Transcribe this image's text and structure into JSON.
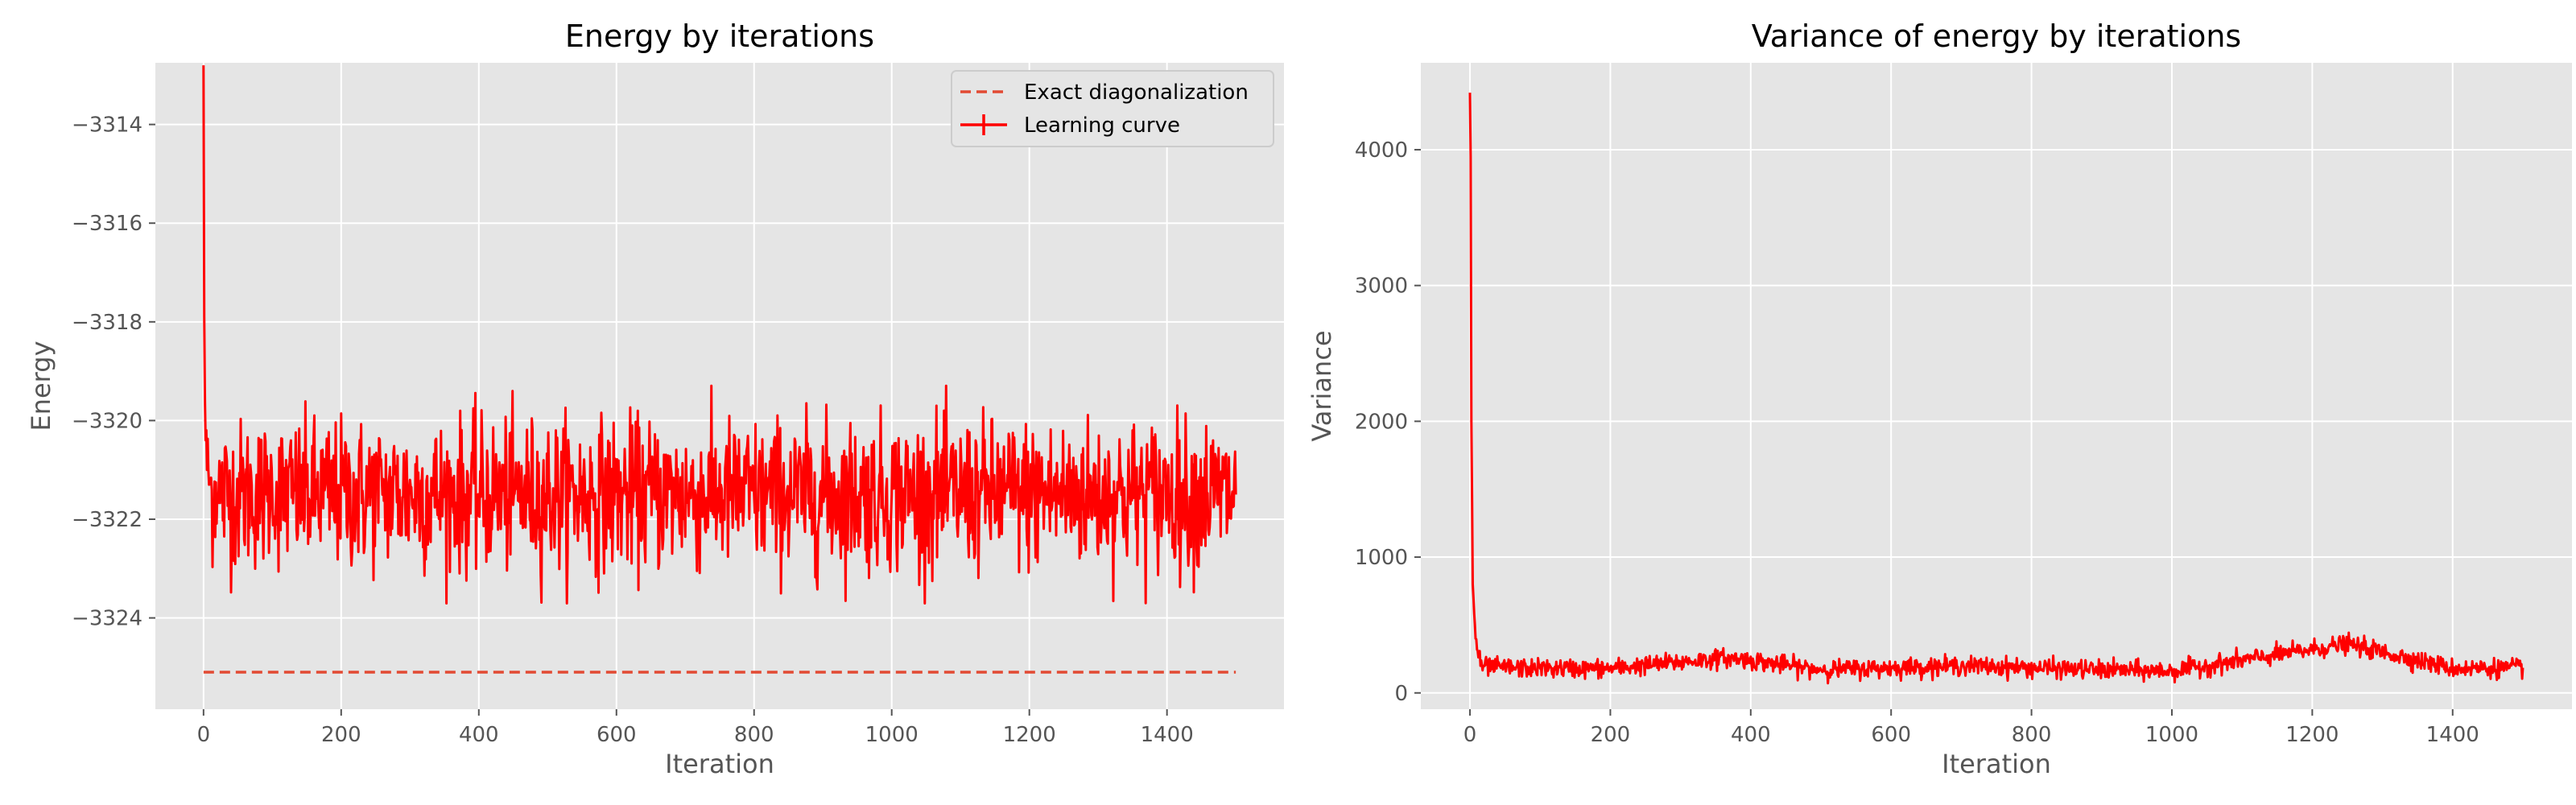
{
  "chart_data": [
    {
      "type": "line",
      "title": "Energy by iterations",
      "xlabel": "Iteration",
      "ylabel": "Energy",
      "xlim": [
        -70,
        1570
      ],
      "ylim": [
        -3325.85,
        -3312.75
      ],
      "xticks": [
        0,
        200,
        400,
        600,
        800,
        1000,
        1200,
        1400
      ],
      "xtick_labels": [
        "0",
        "200",
        "400",
        "600",
        "800",
        "1000",
        "1200",
        "1400"
      ],
      "yticks": [
        -3324,
        -3322,
        -3320,
        -3318,
        -3316,
        -3314
      ],
      "ytick_labels": [
        "−3324",
        "−3322",
        "−3320",
        "−3318",
        "−3316",
        "−3314"
      ],
      "grid": true,
      "legend": "top-right",
      "series": [
        {
          "name": "Exact diagonalization",
          "style": "dashed",
          "color": "#e24a33",
          "x": [
            0,
            1500
          ],
          "y": [
            -3325.1,
            -3325.1
          ]
        },
        {
          "name": "Learning curve",
          "style": "solid-errorbar",
          "color": "#ff0000",
          "description_points": {
            "x": [
              0,
              1,
              2,
              3,
              5,
              8,
              12,
              20,
              50,
              100,
              260,
              380,
              556,
              800,
              870,
              1000,
              1200,
              1320,
              1400,
              1500
            ],
            "y": [
              -3312.8,
              -3317.9,
              -3319.6,
              -3320.4,
              -3321.0,
              -3321.3,
              -3321.4,
              -3321.5,
              -3321.5,
              -3321.5,
              -3321.5,
              -3321.5,
              -3321.5,
              -3321.5,
              -3321.5,
              -3321.5,
              -3321.5,
              -3321.5,
              -3321.5,
              -3321.5
            ]
          },
          "steady_mean": -3321.5,
          "steady_band": [
            -3323.7,
            -3319.5
          ]
        }
      ]
    },
    {
      "type": "line",
      "title": "Variance of energy by iterations",
      "xlabel": "Iteration",
      "ylabel": "Variance",
      "xlim": [
        -70,
        1570
      ],
      "ylim": [
        -120,
        4640
      ],
      "xticks": [
        0,
        200,
        400,
        600,
        800,
        1000,
        1200,
        1400
      ],
      "xtick_labels": [
        "0",
        "200",
        "400",
        "600",
        "800",
        "1000",
        "1200",
        "1400"
      ],
      "yticks": [
        0,
        1000,
        2000,
        3000,
        4000
      ],
      "ytick_labels": [
        "0",
        "1000",
        "2000",
        "3000",
        "4000"
      ],
      "grid": true,
      "series": [
        {
          "color": "#ff0000",
          "description_points": {
            "x": [
              0,
              1,
              2,
              4,
              8,
              15,
              30,
              100,
              200,
              370,
              500,
              700,
              900,
              1000,
              1250,
              1400,
              1500
            ],
            "y": [
              4420,
              3950,
              2000,
              800,
              400,
              200,
              190,
              180,
              180,
              260,
              170,
              200,
              170,
              160,
              360,
              180,
              185
            ]
          },
          "steady_mean": 185,
          "steady_band": [
            100,
            290
          ]
        }
      ]
    }
  ]
}
